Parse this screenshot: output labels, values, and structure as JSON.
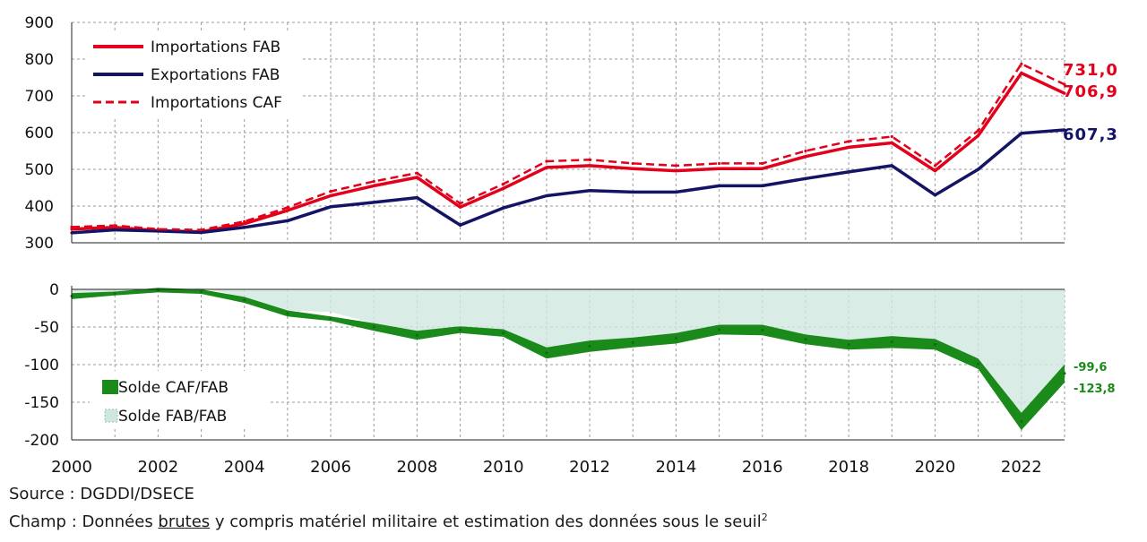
{
  "chart_data": [
    {
      "type": "line",
      "panel": "top",
      "x": [
        2000,
        2001,
        2002,
        2003,
        2004,
        2005,
        2006,
        2007,
        2008,
        2009,
        2010,
        2011,
        2012,
        2013,
        2014,
        2015,
        2016,
        2017,
        2018,
        2019,
        2020,
        2021,
        2022,
        2023
      ],
      "ylim": [
        300,
        900
      ],
      "yticks": [
        "900",
        "800",
        "700",
        "600",
        "500",
        "400",
        "300"
      ],
      "grid": true,
      "legend_position": "top-left",
      "series": [
        {
          "name": "Importations FAB",
          "color": "#e3001b",
          "style": "solid",
          "values": [
            337,
            342,
            333,
            330,
            352,
            388,
            428,
            455,
            478,
            397,
            448,
            505,
            510,
            502,
            496,
            502,
            502,
            535,
            560,
            572,
            496,
            592,
            762,
            706.9
          ]
        },
        {
          "name": "Exportations FAB",
          "color": "#141466",
          "style": "solid",
          "values": [
            327,
            335,
            332,
            328,
            342,
            360,
            398,
            410,
            423,
            348,
            395,
            428,
            442,
            438,
            438,
            455,
            455,
            475,
            493,
            510,
            430,
            500,
            598,
            607.3
          ]
        },
        {
          "name": "Importations CAF",
          "color": "#e3001b",
          "style": "dashed",
          "values": [
            343,
            347,
            337,
            335,
            358,
            396,
            440,
            467,
            490,
            407,
            460,
            522,
            526,
            516,
            510,
            516,
            516,
            550,
            576,
            589,
            510,
            606,
            787,
            731.0
          ]
        }
      ],
      "end_labels": [
        {
          "text": "731,0",
          "color": "#e3001b"
        },
        {
          "text": "706,9",
          "color": "#e3001b"
        },
        {
          "text": "607,3",
          "color": "#141466"
        }
      ]
    },
    {
      "type": "area",
      "panel": "bottom",
      "x": [
        2000,
        2001,
        2002,
        2003,
        2004,
        2005,
        2006,
        2007,
        2008,
        2009,
        2010,
        2011,
        2012,
        2013,
        2014,
        2015,
        2016,
        2017,
        2018,
        2019,
        2020,
        2021,
        2022,
        2023
      ],
      "ylim": [
        -200,
        0
      ],
      "yticks": [
        "0",
        "-50",
        "-100",
        "-150",
        "-200"
      ],
      "xticks": [
        "2000",
        "2002",
        "2004",
        "2006",
        "2008",
        "2010",
        "2012",
        "2014",
        "2016",
        "2018",
        "2020",
        "2022"
      ],
      "grid": true,
      "legend_position": "bottom-left",
      "series": [
        {
          "name": "Solde CAF/FAB",
          "color": "#1a8a1a",
          "style": "band",
          "upper": [
            -5,
            -3,
            2,
            0,
            -10,
            -28,
            -36,
            -45,
            -55,
            -49,
            -53,
            -77,
            -68,
            -64,
            -58,
            -47,
            -47,
            -60,
            -67,
            -62,
            -66,
            -92,
            -164,
            -99.6
          ],
          "lower": [
            -13,
            -8,
            -4,
            -6,
            -18,
            -36,
            -42,
            -55,
            -67,
            -58,
            -63,
            -92,
            -83,
            -77,
            -72,
            -60,
            -61,
            -73,
            -80,
            -78,
            -80,
            -106,
            -187,
            -123.8
          ]
        },
        {
          "name": "Solde FAB/FAB",
          "color": "#cfe7df",
          "style": "area",
          "values": [
            -10,
            -7,
            1,
            2,
            -10,
            -28,
            -30,
            -45,
            -55,
            -49,
            -53,
            -77,
            -68,
            -64,
            -58,
            -47,
            -47,
            -60,
            -67,
            -62,
            -66,
            -92,
            -164,
            -99.6
          ]
        }
      ],
      "end_labels": [
        {
          "text": "-99,6",
          "color": "#1a8a1a"
        },
        {
          "text": "-123,8",
          "color": "#1a8a1a"
        }
      ]
    }
  ],
  "notes": {
    "source": "Source : DGDDI/DSECE",
    "champ_before": "Champ : Données ",
    "champ_underlined": "brutes",
    "champ_after": " y compris matériel militaire et estimation des données sous le seuil",
    "champ_sup": "2"
  }
}
